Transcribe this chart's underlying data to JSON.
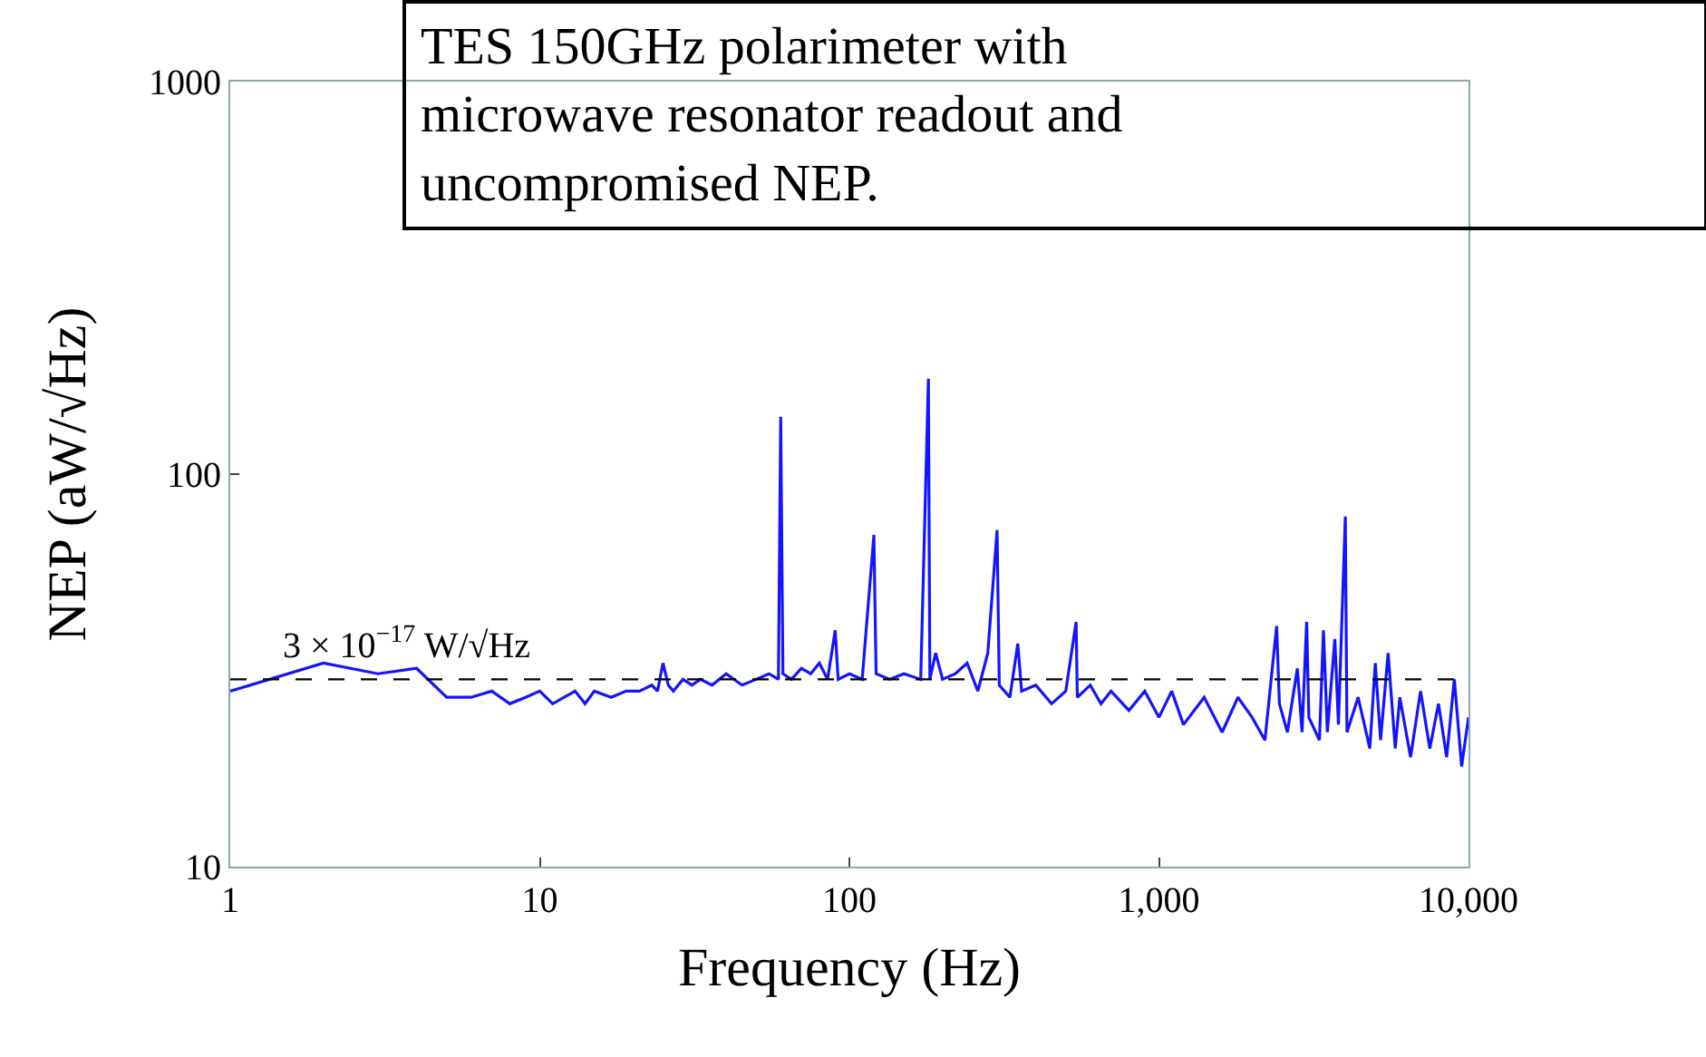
{
  "chart_data": {
    "type": "line",
    "xlabel": "Frequency (Hz)",
    "ylabel": "NEP (aW/√Hz)",
    "annotations": [
      "TES 150GHz polarimeter with microwave resonator readout and uncompromised NEP."
    ],
    "log": "xy",
    "xlim": [
      1,
      10000
    ],
    "xticks": [
      1,
      10,
      100,
      {
        "value": 1000,
        "label": "1,000"
      },
      {
        "value": 10000,
        "label": "10,000"
      }
    ],
    "ylim": [
      10,
      1000
    ],
    "yticks": [
      10,
      100,
      1000
    ],
    "ref_lines": [
      {
        "axis": "y",
        "value": 30,
        "label": "3 × 10$^{−17}$ W/√Hz",
        "color": "#000000",
        "line_style": "dashed"
      }
    ],
    "series": [
      {
        "color": "#1414ff",
        "x": [
          1,
          2,
          3,
          4,
          5,
          6,
          7,
          8,
          9,
          10,
          11,
          12,
          13,
          14,
          15,
          17,
          19,
          21,
          23,
          24,
          25,
          26,
          27,
          29,
          31,
          33,
          36,
          40,
          45,
          50,
          55,
          59,
          60,
          61,
          65,
          70,
          75,
          80,
          85,
          90,
          92,
          100,
          110,
          120,
          122,
          135,
          150,
          170,
          180,
          182,
          190,
          200,
          220,
          240,
          260,
          280,
          300,
          305,
          330,
          350,
          360,
          400,
          450,
          500,
          540,
          545,
          600,
          650,
          700,
          800,
          900,
          1000,
          1100,
          1200,
          1400,
          1600,
          1800,
          2000,
          2200,
          2400,
          2450,
          2600,
          2800,
          2900,
          3000,
          3050,
          3300,
          3400,
          3500,
          3700,
          3800,
          4000,
          4050,
          4400,
          4800,
          5000,
          5200,
          5500,
          5800,
          6000,
          6500,
          7000,
          7500,
          8000,
          8500,
          9000,
          9500,
          10000
        ],
        "values": [
          28,
          33,
          31,
          32,
          27,
          27,
          28,
          26,
          27,
          28,
          26,
          27,
          28,
          26,
          28,
          27,
          28,
          28,
          29,
          28,
          33,
          29,
          28,
          30,
          29,
          30,
          29,
          31,
          29,
          30,
          31,
          30,
          140,
          31,
          30,
          32,
          31,
          33,
          30,
          40,
          30,
          31,
          30,
          70,
          31,
          30,
          31,
          30,
          175,
          30,
          35,
          30,
          31,
          33,
          28,
          35,
          72,
          29,
          27,
          37,
          28,
          29,
          26,
          28,
          42,
          27,
          29,
          26,
          28,
          25,
          28,
          24,
          28,
          23,
          27,
          22,
          27,
          24,
          21,
          41,
          26,
          22,
          32,
          22,
          42,
          24,
          21,
          40,
          22,
          38,
          23,
          78,
          22,
          27,
          20,
          33,
          21,
          35,
          20,
          27,
          19,
          28,
          20,
          26,
          19,
          30,
          18,
          24
        ]
      }
    ]
  }
}
